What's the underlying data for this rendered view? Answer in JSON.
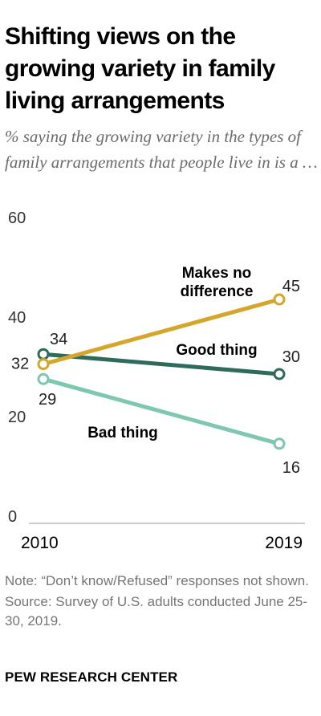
{
  "title": "Shifting views on the growing variety in family living arrangements",
  "subtitle": "% saying the growing variety in the types of family arrangements that people live in is a …",
  "note": "Note: “Don’t know/Refused” responses not shown.",
  "source": "Source: Survey of U.S. adults conducted June 25-30, 2019.",
  "brand": "PEW RESEARCH CENTER",
  "chart_data": {
    "type": "line",
    "x": [
      "2010",
      "2019"
    ],
    "ylim": [
      0,
      60
    ],
    "yticks": [
      "0",
      "20",
      "40",
      "60"
    ],
    "grid": false,
    "series": [
      {
        "name": "Makes no difference",
        "label_lines": [
          "Makes no",
          "difference"
        ],
        "values": [
          32,
          45
        ],
        "labels": [
          "32",
          "45"
        ],
        "color": "#d4a62a"
      },
      {
        "name": "Good thing",
        "label_lines": [
          "Good thing"
        ],
        "values": [
          34,
          30
        ],
        "labels": [
          "34",
          "30"
        ],
        "color": "#2f6b5b"
      },
      {
        "name": "Bad thing",
        "label_lines": [
          "Bad thing"
        ],
        "values": [
          29,
          16
        ],
        "labels": [
          "29",
          "16"
        ],
        "color": "#7ec8b0"
      }
    ]
  }
}
